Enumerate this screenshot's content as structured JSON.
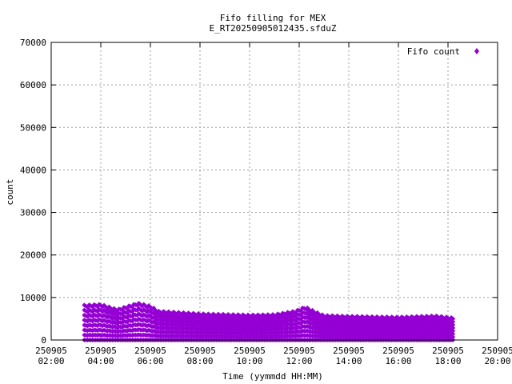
{
  "chart_data": {
    "type": "scatter",
    "title_lines": [
      "Fifo filling for MEX",
      "E_RT20250905012435.sfduZ"
    ],
    "xlabel": "Time (yymmdd HH:MM)",
    "ylabel": "count",
    "xlim": [
      "2025-09-05 02:00",
      "2025-09-05 20:00"
    ],
    "ylim": [
      0,
      70000
    ],
    "grid": true,
    "legend_position": "top-right",
    "x_ticks": [
      {
        "date": "250905",
        "time": "02:00"
      },
      {
        "date": "250905",
        "time": "04:00"
      },
      {
        "date": "250905",
        "time": "06:00"
      },
      {
        "date": "250905",
        "time": "08:00"
      },
      {
        "date": "250905",
        "time": "10:00"
      },
      {
        "date": "250905",
        "time": "12:00"
      },
      {
        "date": "250905",
        "time": "14:00"
      },
      {
        "date": "250905",
        "time": "16:00"
      },
      {
        "date": "250905",
        "time": "18:00"
      },
      {
        "date": "250905",
        "time": "20:00"
      }
    ],
    "y_ticks": [
      "0",
      "10000",
      "20000",
      "30000",
      "40000",
      "50000",
      "60000",
      "70000"
    ],
    "series": [
      {
        "name": "Fifo count",
        "color": "#9400d3",
        "marker": "diamond",
        "time_range": [
          "2025-09-05 03:20",
          "2025-09-05 18:15"
        ],
        "description_of_values": "periodic sawtooth fill levels from 0 up to an envelope maximum",
        "envelope_max": [
          {
            "x": "2025-09-05 03:22",
            "y": 8200
          },
          {
            "x": "2025-09-05 04:00",
            "y": 8400
          },
          {
            "x": "2025-09-05 04:40",
            "y": 7200
          },
          {
            "x": "2025-09-05 05:00",
            "y": 7800
          },
          {
            "x": "2025-09-05 05:30",
            "y": 8700
          },
          {
            "x": "2025-09-05 06:00",
            "y": 8000
          },
          {
            "x": "2025-09-05 06:20",
            "y": 6800
          },
          {
            "x": "2025-09-05 08:00",
            "y": 6200
          },
          {
            "x": "2025-09-05 10:00",
            "y": 5900
          },
          {
            "x": "2025-09-05 11:00",
            "y": 6000
          },
          {
            "x": "2025-09-05 11:50",
            "y": 6800
          },
          {
            "x": "2025-09-05 12:15",
            "y": 7800
          },
          {
            "x": "2025-09-05 12:40",
            "y": 6600
          },
          {
            "x": "2025-09-05 13:00",
            "y": 5800
          },
          {
            "x": "2025-09-05 14:00",
            "y": 5600
          },
          {
            "x": "2025-09-05 16:00",
            "y": 5400
          },
          {
            "x": "2025-09-05 17:30",
            "y": 5700
          },
          {
            "x": "2025-09-05 18:15",
            "y": 5200
          }
        ],
        "levels": 8
      }
    ]
  }
}
